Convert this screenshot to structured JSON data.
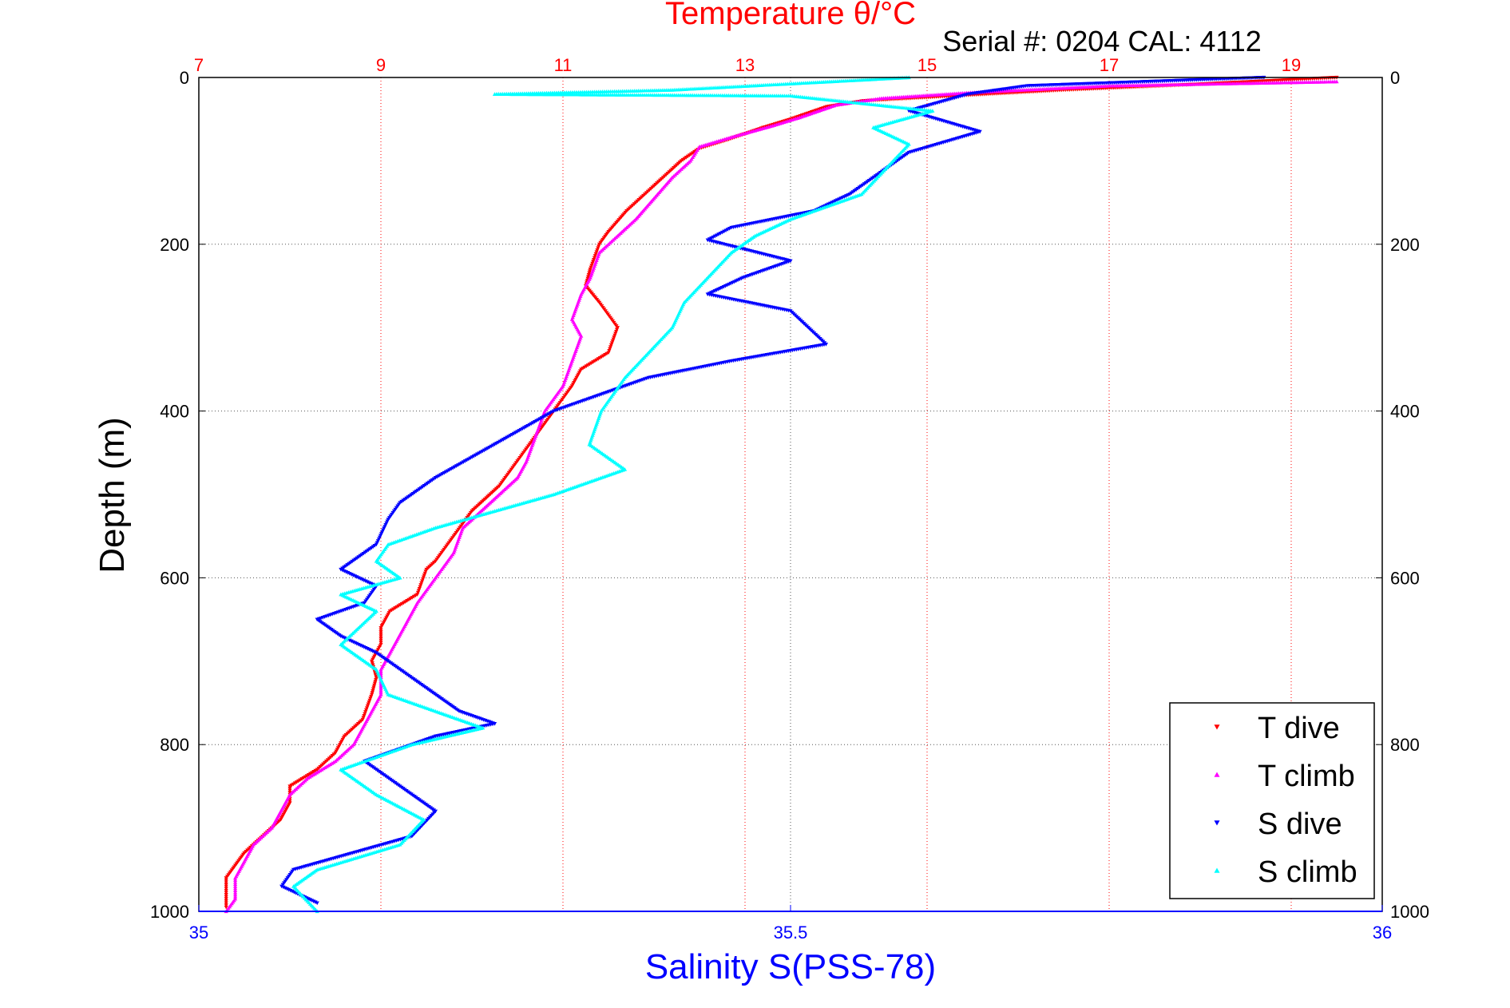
{
  "chart_data": {
    "type": "scatter",
    "title": "Temperature θ/°C",
    "subtitle": "Serial #: 0204  CAL: 4112",
    "ylabel": "Depth (m)",
    "xlabel_bottom": "Salinity S(PSS-78)",
    "y_axis": {
      "ylim": [
        0,
        1000
      ],
      "reversed": true,
      "ticks": [
        0,
        200,
        400,
        600,
        800,
        1000
      ]
    },
    "top_axis": {
      "quantity": "temperature",
      "xlim": [
        7,
        20
      ],
      "ticks": [
        7,
        9,
        11,
        13,
        15,
        17,
        19
      ],
      "color": "#ff0000"
    },
    "bottom_axis": {
      "quantity": "salinity",
      "xlim": [
        35,
        36
      ],
      "ticks": [
        35,
        35.5,
        36
      ],
      "color": "#0000ff"
    },
    "grid": true,
    "legend_position": "bottom-right",
    "series": [
      {
        "name": "T dive",
        "axis": "top",
        "color": "#ff0000",
        "marker": "triangle-down",
        "points": [
          [
            19.5,
            0
          ],
          [
            18.0,
            8
          ],
          [
            16.5,
            15
          ],
          [
            15.3,
            22
          ],
          [
            14.3,
            28
          ],
          [
            13.9,
            35
          ],
          [
            13.5,
            50
          ],
          [
            13.2,
            60
          ],
          [
            12.8,
            75
          ],
          [
            12.5,
            85
          ],
          [
            12.3,
            100
          ],
          [
            12.1,
            120
          ],
          [
            11.9,
            140
          ],
          [
            11.7,
            160
          ],
          [
            11.5,
            185
          ],
          [
            11.4,
            200
          ],
          [
            11.3,
            230
          ],
          [
            11.25,
            250
          ],
          [
            11.4,
            270
          ],
          [
            11.6,
            300
          ],
          [
            11.5,
            330
          ],
          [
            11.2,
            350
          ],
          [
            11.1,
            370
          ],
          [
            10.9,
            400
          ],
          [
            10.7,
            430
          ],
          [
            10.5,
            460
          ],
          [
            10.3,
            490
          ],
          [
            10.0,
            520
          ],
          [
            9.8,
            550
          ],
          [
            9.6,
            580
          ],
          [
            9.5,
            590
          ],
          [
            9.4,
            620
          ],
          [
            9.1,
            640
          ],
          [
            9.0,
            660
          ],
          [
            9.0,
            680
          ],
          [
            8.9,
            700
          ],
          [
            8.95,
            720
          ],
          [
            8.9,
            740
          ],
          [
            8.8,
            770
          ],
          [
            8.6,
            790
          ],
          [
            8.5,
            810
          ],
          [
            8.3,
            830
          ],
          [
            8.0,
            850
          ],
          [
            8.0,
            870
          ],
          [
            7.9,
            890
          ],
          [
            7.7,
            910
          ],
          [
            7.5,
            930
          ],
          [
            7.4,
            945
          ],
          [
            7.3,
            960
          ],
          [
            7.3,
            980
          ],
          [
            7.3,
            995
          ]
        ]
      },
      {
        "name": "T climb",
        "axis": "top",
        "color": "#ff00ff",
        "marker": "triangle-up",
        "points": [
          [
            19.5,
            5
          ],
          [
            17.0,
            10
          ],
          [
            15.5,
            18
          ],
          [
            14.5,
            25
          ],
          [
            14.0,
            33
          ],
          [
            13.6,
            48
          ],
          [
            13.3,
            58
          ],
          [
            12.9,
            70
          ],
          [
            12.5,
            83
          ],
          [
            12.4,
            100
          ],
          [
            12.2,
            120
          ],
          [
            12.0,
            145
          ],
          [
            11.8,
            170
          ],
          [
            11.6,
            190
          ],
          [
            11.4,
            210
          ],
          [
            11.3,
            240
          ],
          [
            11.2,
            260
          ],
          [
            11.1,
            290
          ],
          [
            11.2,
            310
          ],
          [
            11.1,
            340
          ],
          [
            11.0,
            370
          ],
          [
            10.8,
            400
          ],
          [
            10.7,
            430
          ],
          [
            10.6,
            460
          ],
          [
            10.5,
            480
          ],
          [
            10.2,
            510
          ],
          [
            9.9,
            540
          ],
          [
            9.8,
            570
          ],
          [
            9.6,
            600
          ],
          [
            9.4,
            630
          ],
          [
            9.3,
            650
          ],
          [
            9.2,
            670
          ],
          [
            9.1,
            690
          ],
          [
            9.0,
            710
          ],
          [
            9.0,
            740
          ],
          [
            8.9,
            760
          ],
          [
            8.8,
            780
          ],
          [
            8.7,
            800
          ],
          [
            8.5,
            820
          ],
          [
            8.2,
            840
          ],
          [
            8.0,
            860
          ],
          [
            7.9,
            880
          ],
          [
            7.8,
            900
          ],
          [
            7.6,
            920
          ],
          [
            7.5,
            940
          ],
          [
            7.4,
            960
          ],
          [
            7.4,
            985
          ],
          [
            7.3,
            1000
          ]
        ]
      },
      {
        "name": "S dive",
        "axis": "bottom",
        "color": "#0000ff",
        "marker": "triangle-down",
        "points": [
          [
            35.9,
            0
          ],
          [
            35.7,
            10
          ],
          [
            35.65,
            20
          ],
          [
            35.6,
            40
          ],
          [
            35.66,
            65
          ],
          [
            35.6,
            90
          ],
          [
            35.58,
            110
          ],
          [
            35.55,
            140
          ],
          [
            35.52,
            160
          ],
          [
            35.45,
            180
          ],
          [
            35.43,
            195
          ],
          [
            35.5,
            220
          ],
          [
            35.46,
            240
          ],
          [
            35.43,
            260
          ],
          [
            35.5,
            280
          ],
          [
            35.53,
            320
          ],
          [
            35.45,
            340
          ],
          [
            35.38,
            360
          ],
          [
            35.3,
            400
          ],
          [
            35.25,
            440
          ],
          [
            35.2,
            480
          ],
          [
            35.17,
            510
          ],
          [
            35.16,
            530
          ],
          [
            35.15,
            560
          ],
          [
            35.12,
            590
          ],
          [
            35.15,
            610
          ],
          [
            35.14,
            630
          ],
          [
            35.1,
            650
          ],
          [
            35.12,
            670
          ],
          [
            35.15,
            690
          ],
          [
            35.18,
            720
          ],
          [
            35.2,
            740
          ],
          [
            35.22,
            760
          ],
          [
            35.25,
            775
          ],
          [
            35.2,
            790
          ],
          [
            35.14,
            820
          ],
          [
            35.17,
            850
          ],
          [
            35.2,
            880
          ],
          [
            35.18,
            910
          ],
          [
            35.13,
            930
          ],
          [
            35.08,
            950
          ],
          [
            35.07,
            970
          ],
          [
            35.1,
            990
          ]
        ]
      },
      {
        "name": "S climb",
        "axis": "bottom",
        "color": "#00ffff",
        "marker": "triangle-up",
        "points": [
          [
            35.6,
            0
          ],
          [
            35.4,
            15
          ],
          [
            35.25,
            20
          ],
          [
            35.5,
            22
          ],
          [
            35.62,
            40
          ],
          [
            35.57,
            60
          ],
          [
            35.6,
            80
          ],
          [
            35.58,
            110
          ],
          [
            35.56,
            140
          ],
          [
            35.5,
            170
          ],
          [
            35.47,
            190
          ],
          [
            35.45,
            210
          ],
          [
            35.43,
            240
          ],
          [
            35.41,
            270
          ],
          [
            35.4,
            300
          ],
          [
            35.38,
            330
          ],
          [
            35.36,
            360
          ],
          [
            35.34,
            400
          ],
          [
            35.33,
            440
          ],
          [
            35.36,
            470
          ],
          [
            35.3,
            500
          ],
          [
            35.25,
            520
          ],
          [
            35.2,
            540
          ],
          [
            35.16,
            560
          ],
          [
            35.15,
            580
          ],
          [
            35.17,
            600
          ],
          [
            35.12,
            620
          ],
          [
            35.15,
            640
          ],
          [
            35.12,
            680
          ],
          [
            35.15,
            710
          ],
          [
            35.16,
            740
          ],
          [
            35.2,
            760
          ],
          [
            35.24,
            780
          ],
          [
            35.18,
            800
          ],
          [
            35.12,
            830
          ],
          [
            35.15,
            860
          ],
          [
            35.19,
            890
          ],
          [
            35.17,
            920
          ],
          [
            35.1,
            950
          ],
          [
            35.08,
            970
          ],
          [
            35.1,
            1000
          ]
        ]
      }
    ]
  }
}
